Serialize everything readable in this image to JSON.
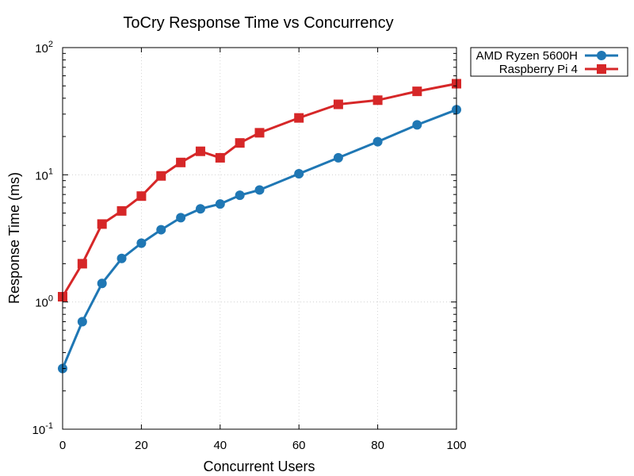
{
  "chart_data": {
    "type": "line",
    "title": "ToCry Response Time vs Concurrency",
    "xlabel": "Concurrent Users",
    "ylabel": "Response Time (ms)",
    "xlim": [
      0,
      100
    ],
    "ylim": [
      0.1,
      100
    ],
    "yscale": "log",
    "grid": true,
    "legend_position": "outside-top-right",
    "x_ticks": [
      0,
      20,
      40,
      60,
      80,
      100
    ],
    "y_ticks": [
      {
        "value": 0.1,
        "base": "10",
        "exp": "-1"
      },
      {
        "value": 1,
        "base": "10",
        "exp": "0"
      },
      {
        "value": 10,
        "base": "10",
        "exp": "1"
      },
      {
        "value": 100,
        "base": "10",
        "exp": "2"
      }
    ],
    "series": [
      {
        "name": "AMD Ryzen 5600H",
        "color": "#1f77b4",
        "marker": "circle",
        "x": [
          0,
          5,
          10,
          15,
          20,
          25,
          30,
          35,
          40,
          45,
          50,
          60,
          70,
          80,
          90,
          100
        ],
        "y": [
          0.3,
          0.7,
          1.4,
          2.2,
          2.9,
          3.7,
          4.6,
          5.4,
          5.9,
          6.9,
          7.6,
          10.2,
          13.6,
          18.2,
          24.7,
          32.5
        ]
      },
      {
        "name": "Raspberry Pi 4",
        "color": "#d62728",
        "marker": "square",
        "x": [
          0,
          5,
          10,
          15,
          20,
          25,
          30,
          35,
          40,
          45,
          50,
          60,
          70,
          80,
          90,
          100
        ],
        "y": [
          1.1,
          2.0,
          4.1,
          5.2,
          6.8,
          9.8,
          12.5,
          15.3,
          13.6,
          17.8,
          21.4,
          28.0,
          35.8,
          38.6,
          45.3,
          52.0
        ]
      }
    ]
  }
}
